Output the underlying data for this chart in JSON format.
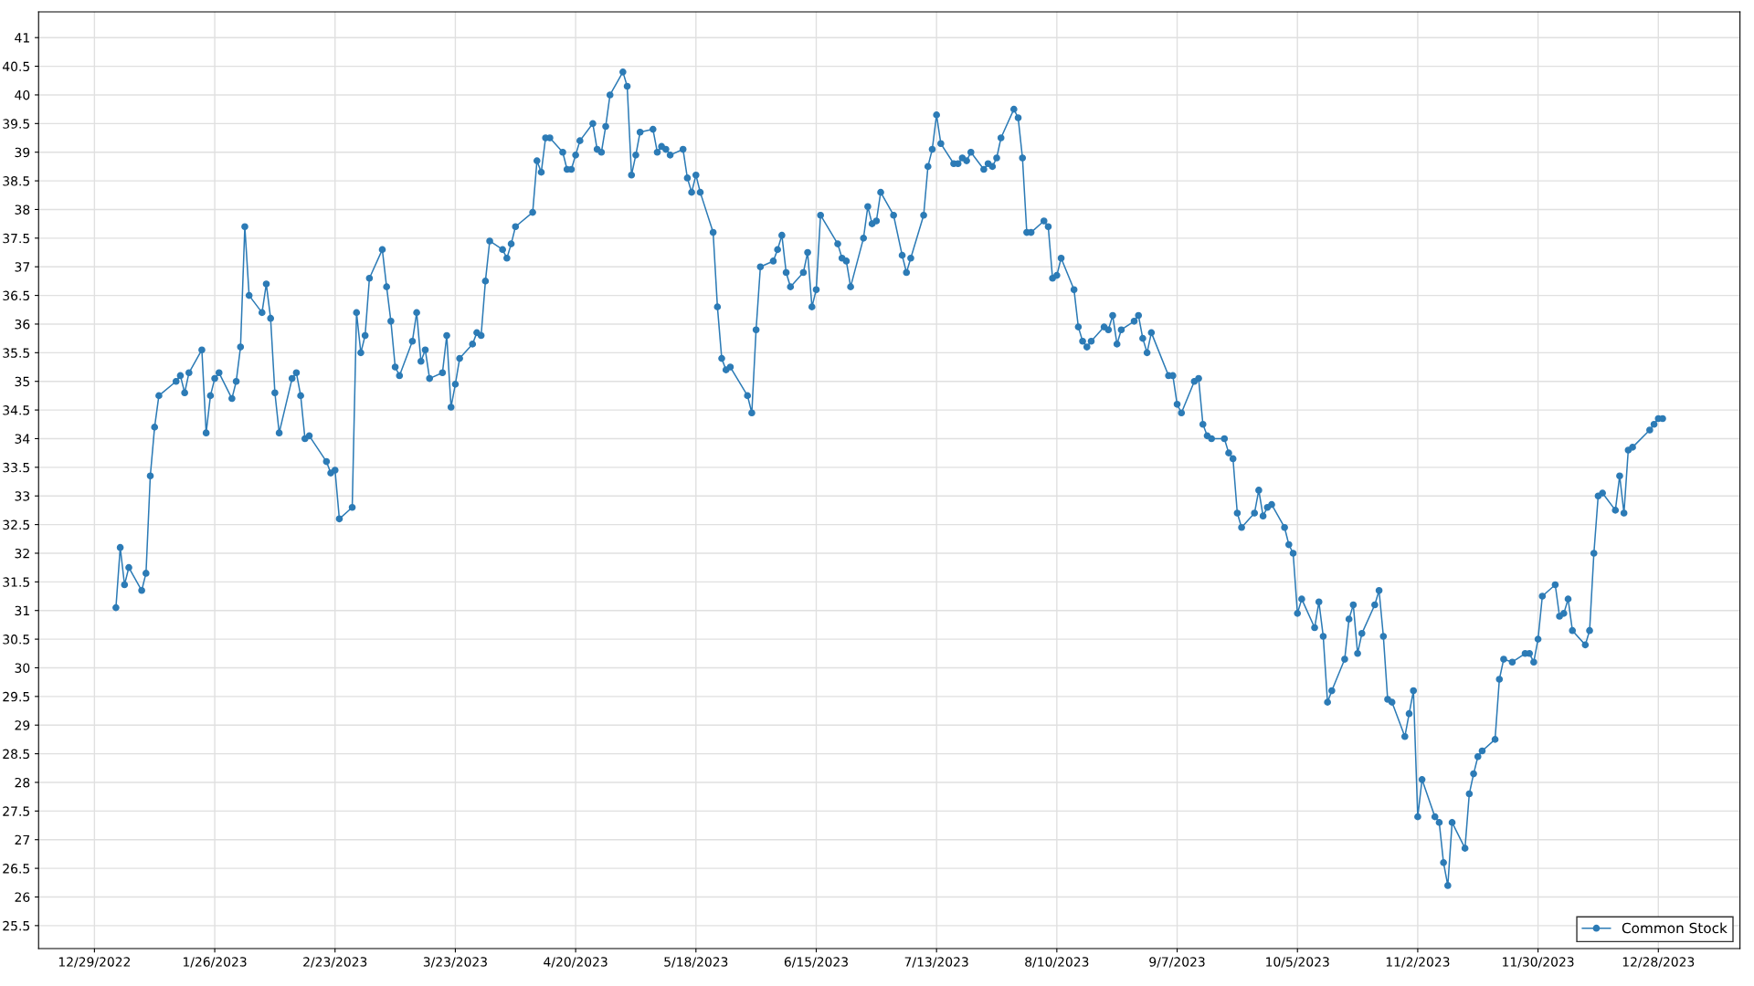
{
  "chart_data": {
    "type": "line",
    "legend": "bottom right",
    "grid": true,
    "marker": "circle",
    "line_style": "solid",
    "xlim": [
      "2022-12-16",
      "2024-01-16"
    ],
    "ylim": [
      25.1,
      41.45
    ],
    "xticks": [
      {
        "value": "2022-12-29",
        "label": "12/29/2022"
      },
      {
        "value": "2023-01-26",
        "label": "1/26/2023"
      },
      {
        "value": "2023-02-23",
        "label": "2/23/2023"
      },
      {
        "value": "2023-03-23",
        "label": "3/23/2023"
      },
      {
        "value": "2023-04-20",
        "label": "4/20/2023"
      },
      {
        "value": "2023-05-18",
        "label": "5/18/2023"
      },
      {
        "value": "2023-06-15",
        "label": "6/15/2023"
      },
      {
        "value": "2023-07-13",
        "label": "7/13/2023"
      },
      {
        "value": "2023-08-10",
        "label": "8/10/2023"
      },
      {
        "value": "2023-09-07",
        "label": "9/7/2023"
      },
      {
        "value": "2023-10-05",
        "label": "10/5/2023"
      },
      {
        "value": "2023-11-02",
        "label": "11/2/2023"
      },
      {
        "value": "2023-11-30",
        "label": "11/30/2023"
      },
      {
        "value": "2023-12-28",
        "label": "12/28/2023"
      }
    ],
    "yticks": [
      25.5,
      26,
      26.5,
      27,
      27.5,
      28,
      28.5,
      29,
      29.5,
      30,
      30.5,
      31,
      31.5,
      32,
      32.5,
      33,
      33.5,
      34,
      34.5,
      35,
      35.5,
      36,
      36.5,
      37,
      37.5,
      38,
      38.5,
      39,
      39.5,
      40,
      40.5,
      41
    ],
    "series": [
      {
        "name": "Common Stock",
        "color": "#2c7bb6",
        "x": [
          "2023-01-03",
          "2023-01-04",
          "2023-01-05",
          "2023-01-06",
          "2023-01-09",
          "2023-01-10",
          "2023-01-11",
          "2023-01-12",
          "2023-01-13",
          "2023-01-17",
          "2023-01-18",
          "2023-01-19",
          "2023-01-20",
          "2023-01-23",
          "2023-01-24",
          "2023-01-25",
          "2023-01-26",
          "2023-01-27",
          "2023-01-30",
          "2023-01-31",
          "2023-02-01",
          "2023-02-02",
          "2023-02-03",
          "2023-02-06",
          "2023-02-07",
          "2023-02-08",
          "2023-02-09",
          "2023-02-10",
          "2023-02-13",
          "2023-02-14",
          "2023-02-15",
          "2023-02-16",
          "2023-02-17",
          "2023-02-21",
          "2023-02-22",
          "2023-02-23",
          "2023-02-24",
          "2023-02-27",
          "2023-02-28",
          "2023-03-01",
          "2023-03-02",
          "2023-03-03",
          "2023-03-06",
          "2023-03-07",
          "2023-03-08",
          "2023-03-09",
          "2023-03-10",
          "2023-03-13",
          "2023-03-14",
          "2023-03-15",
          "2023-03-16",
          "2023-03-17",
          "2023-03-20",
          "2023-03-21",
          "2023-03-22",
          "2023-03-23",
          "2023-03-24",
          "2023-03-27",
          "2023-03-28",
          "2023-03-29",
          "2023-03-30",
          "2023-03-31",
          "2023-04-03",
          "2023-04-04",
          "2023-04-05",
          "2023-04-06",
          "2023-04-10",
          "2023-04-11",
          "2023-04-12",
          "2023-04-13",
          "2023-04-14",
          "2023-04-17",
          "2023-04-18",
          "2023-04-19",
          "2023-04-20",
          "2023-04-21",
          "2023-04-24",
          "2023-04-25",
          "2023-04-26",
          "2023-04-27",
          "2023-04-28",
          "2023-05-01",
          "2023-05-02",
          "2023-05-03",
          "2023-05-04",
          "2023-05-05",
          "2023-05-08",
          "2023-05-09",
          "2023-05-10",
          "2023-05-11",
          "2023-05-12",
          "2023-05-15",
          "2023-05-16",
          "2023-05-17",
          "2023-05-18",
          "2023-05-19",
          "2023-05-22",
          "2023-05-23",
          "2023-05-24",
          "2023-05-25",
          "2023-05-26",
          "2023-05-30",
          "2023-05-31",
          "2023-06-01",
          "2023-06-02",
          "2023-06-05",
          "2023-06-06",
          "2023-06-07",
          "2023-06-08",
          "2023-06-09",
          "2023-06-12",
          "2023-06-13",
          "2023-06-14",
          "2023-06-15",
          "2023-06-16",
          "2023-06-20",
          "2023-06-21",
          "2023-06-22",
          "2023-06-23",
          "2023-06-26",
          "2023-06-27",
          "2023-06-28",
          "2023-06-29",
          "2023-06-30",
          "2023-07-03",
          "2023-07-05",
          "2023-07-06",
          "2023-07-07",
          "2023-07-10",
          "2023-07-11",
          "2023-07-12",
          "2023-07-13",
          "2023-07-14",
          "2023-07-17",
          "2023-07-18",
          "2023-07-19",
          "2023-07-20",
          "2023-07-21",
          "2023-07-24",
          "2023-07-25",
          "2023-07-26",
          "2023-07-27",
          "2023-07-28",
          "2023-07-31",
          "2023-08-01",
          "2023-08-02",
          "2023-08-03",
          "2023-08-04",
          "2023-08-07",
          "2023-08-08",
          "2023-08-09",
          "2023-08-10",
          "2023-08-11",
          "2023-08-14",
          "2023-08-15",
          "2023-08-16",
          "2023-08-17",
          "2023-08-18",
          "2023-08-21",
          "2023-08-22",
          "2023-08-23",
          "2023-08-24",
          "2023-08-25",
          "2023-08-28",
          "2023-08-29",
          "2023-08-30",
          "2023-08-31",
          "2023-09-01",
          "2023-09-05",
          "2023-09-06",
          "2023-09-07",
          "2023-09-08",
          "2023-09-11",
          "2023-09-12",
          "2023-09-13",
          "2023-09-14",
          "2023-09-15",
          "2023-09-18",
          "2023-09-19",
          "2023-09-20",
          "2023-09-21",
          "2023-09-22",
          "2023-09-25",
          "2023-09-26",
          "2023-09-27",
          "2023-09-28",
          "2023-09-29",
          "2023-10-02",
          "2023-10-03",
          "2023-10-04",
          "2023-10-05",
          "2023-10-06",
          "2023-10-09",
          "2023-10-10",
          "2023-10-11",
          "2023-10-12",
          "2023-10-13",
          "2023-10-16",
          "2023-10-17",
          "2023-10-18",
          "2023-10-19",
          "2023-10-20",
          "2023-10-23",
          "2023-10-24",
          "2023-10-25",
          "2023-10-26",
          "2023-10-27",
          "2023-10-30",
          "2023-10-31",
          "2023-11-01",
          "2023-11-02",
          "2023-11-03",
          "2023-11-06",
          "2023-11-07",
          "2023-11-08",
          "2023-11-09",
          "2023-11-10",
          "2023-11-13",
          "2023-11-14",
          "2023-11-15",
          "2023-11-16",
          "2023-11-17",
          "2023-11-20",
          "2023-11-21",
          "2023-11-22",
          "2023-11-24",
          "2023-11-27",
          "2023-11-28",
          "2023-11-29",
          "2023-11-30",
          "2023-12-01",
          "2023-12-04",
          "2023-12-05",
          "2023-12-06",
          "2023-12-07",
          "2023-12-08",
          "2023-12-11",
          "2023-12-12",
          "2023-12-13",
          "2023-12-14",
          "2023-12-15",
          "2023-12-18",
          "2023-12-19",
          "2023-12-20",
          "2023-12-21",
          "2023-12-22",
          "2023-12-26",
          "2023-12-27",
          "2023-12-28",
          "2023-12-29"
        ],
        "values": [
          31.05,
          32.1,
          31.45,
          31.75,
          31.35,
          31.65,
          33.35,
          34.2,
          34.75,
          35.0,
          35.1,
          34.8,
          35.15,
          35.55,
          34.1,
          34.75,
          35.05,
          35.15,
          34.7,
          35.0,
          35.6,
          37.7,
          36.5,
          36.2,
          36.7,
          36.1,
          34.8,
          34.1,
          35.05,
          35.15,
          34.75,
          34.0,
          34.05,
          33.6,
          33.4,
          33.45,
          32.6,
          32.8,
          36.2,
          35.5,
          35.8,
          36.8,
          37.3,
          36.65,
          36.05,
          35.25,
          35.1,
          35.7,
          36.2,
          35.35,
          35.55,
          35.05,
          35.15,
          35.8,
          34.55,
          34.95,
          35.4,
          35.65,
          35.85,
          35.8,
          36.75,
          37.45,
          37.3,
          37.15,
          37.4,
          37.7,
          37.95,
          38.85,
          38.65,
          39.25,
          39.25,
          39.0,
          38.7,
          38.7,
          38.95,
          39.2,
          39.5,
          39.05,
          39.0,
          39.45,
          40.0,
          40.4,
          40.15,
          38.6,
          38.95,
          39.35,
          39.4,
          39.0,
          39.1,
          39.05,
          38.95,
          39.05,
          38.55,
          38.3,
          38.6,
          38.3,
          37.6,
          36.3,
          35.4,
          35.2,
          35.25,
          34.75,
          34.45,
          35.9,
          37.0,
          37.1,
          37.3,
          37.55,
          36.9,
          36.65,
          36.9,
          37.25,
          36.3,
          36.6,
          37.9,
          37.4,
          37.15,
          37.1,
          36.65,
          37.5,
          38.05,
          37.75,
          37.8,
          38.3,
          37.9,
          37.2,
          36.9,
          37.15,
          37.9,
          38.75,
          39.05,
          39.65,
          39.15,
          38.8,
          38.8,
          38.9,
          38.85,
          39.0,
          38.7,
          38.8,
          38.75,
          38.9,
          39.25,
          39.75,
          39.6,
          38.9,
          37.6,
          37.6,
          37.8,
          37.7,
          36.8,
          36.85,
          37.15,
          36.6,
          35.95,
          35.7,
          35.6,
          35.7,
          35.95,
          35.9,
          36.15,
          35.65,
          35.9,
          36.05,
          36.15,
          35.75,
          35.5,
          35.85,
          35.1,
          35.1,
          34.6,
          34.45,
          35.0,
          35.05,
          34.25,
          34.05,
          34.0,
          34.0,
          33.75,
          33.65,
          32.7,
          32.45,
          32.7,
          33.1,
          32.65,
          32.8,
          32.85,
          32.45,
          32.15,
          32.0,
          30.95,
          31.2,
          30.7,
          31.15,
          30.55,
          29.4,
          29.6,
          30.15,
          30.85,
          31.1,
          30.25,
          30.6,
          31.1,
          31.35,
          30.55,
          29.45,
          29.4,
          28.8,
          29.2,
          29.6,
          27.4,
          28.05,
          27.4,
          27.3,
          26.6,
          26.2,
          27.3,
          26.85,
          27.8,
          28.15,
          28.45,
          28.55,
          28.75,
          29.8,
          30.15,
          30.1,
          30.25,
          30.25,
          30.1,
          30.5,
          31.25,
          31.45,
          30.9,
          30.95,
          31.2,
          30.65,
          30.4,
          30.65,
          32.0,
          33.0,
          33.05,
          32.75,
          33.35,
          32.7,
          33.8,
          33.85,
          34.15,
          34.25,
          34.35,
          34.35
        ]
      }
    ]
  }
}
